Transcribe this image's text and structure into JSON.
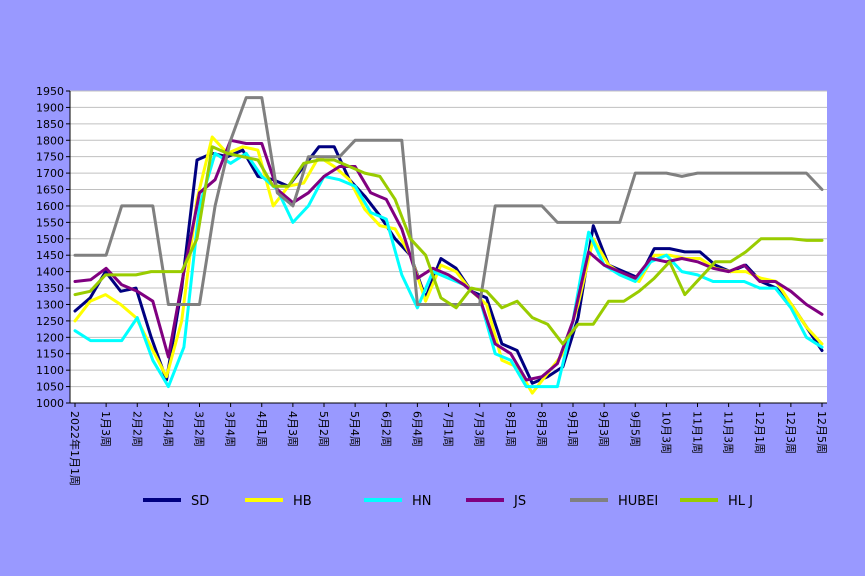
{
  "chart_data": {
    "type": "line",
    "title": "",
    "xlabel": "",
    "ylabel": "",
    "ylim": [
      1000,
      1950
    ],
    "y_ticks": [
      1000,
      1050,
      1100,
      1150,
      1200,
      1250,
      1300,
      1350,
      1400,
      1450,
      1500,
      1550,
      1600,
      1650,
      1700,
      1750,
      1800,
      1850,
      1900,
      1950
    ],
    "grid": true,
    "legend_position": "bottom",
    "x_tick_labels": [
      "2022年1月1周",
      "1月3周",
      "2月2周",
      "2月4周",
      "3月2周",
      "3月4周",
      "4月1周",
      "4月3周",
      "5月2周",
      "5月4周",
      "6月2周",
      "6月4周",
      "7月1周",
      "7月3周",
      "8月1周",
      "8月3周",
      "9月1周",
      "9月3周",
      "9月5周",
      "10月3周",
      "11月1周",
      "11月3周",
      "12月1周",
      "12月3周",
      "12月5周"
    ],
    "colors": {
      "background": "#9999ff",
      "plot_area": "#ffffff",
      "grid": "#c0c0c0"
    },
    "series": [
      {
        "name": "SD",
        "color": "#000080",
        "values": [
          1280,
          1320,
          1400,
          1340,
          1350,
          1200,
          1070,
          1350,
          1740,
          1760,
          1750,
          1770,
          1690,
          1680,
          1660,
          1720,
          1780,
          1780,
          1680,
          1630,
          1570,
          1500,
          1450,
          1320,
          1440,
          1410,
          1340,
          1320,
          1180,
          1160,
          1060,
          1080,
          1110,
          1260,
          1540,
          1420,
          1400,
          1380,
          1470,
          1470,
          1460,
          1460,
          1420,
          1400,
          1420,
          1370,
          1350,
          1300,
          1230,
          1160
        ]
      },
      {
        "name": "HB",
        "color": "#ffff00",
        "values": [
          1250,
          1310,
          1330,
          1300,
          1260,
          1170,
          1080,
          1250,
          1620,
          1810,
          1760,
          1780,
          1770,
          1600,
          1660,
          1670,
          1750,
          1720,
          1680,
          1590,
          1540,
          1530,
          1450,
          1310,
          1420,
          1400,
          1340,
          1300,
          1130,
          1110,
          1030,
          1090,
          1150,
          1300,
          1500,
          1420,
          1390,
          1370,
          1450,
          1450,
          1440,
          1440,
          1410,
          1400,
          1400,
          1380,
          1370,
          1300,
          1230,
          1180
        ]
      },
      {
        "name": "HN",
        "color": "#00ffff",
        "values": [
          1220,
          1190,
          1190,
          1190,
          1260,
          1130,
          1050,
          1170,
          1600,
          1760,
          1730,
          1760,
          1690,
          1650,
          1550,
          1600,
          1690,
          1680,
          1660,
          1580,
          1560,
          1390,
          1290,
          1400,
          1380,
          1360,
          1320,
          1150,
          1130,
          1050,
          1050,
          1050,
          1250,
          1520,
          1420,
          1390,
          1370,
          1430,
          1450,
          1400,
          1390,
          1370,
          1370,
          1370,
          1350,
          1350,
          1290,
          1200,
          1170
        ]
      },
      {
        "name": "JS",
        "color": "#800080",
        "values": [
          1370,
          1375,
          1410,
          1360,
          1340,
          1310,
          1140,
          1400,
          1640,
          1680,
          1800,
          1790,
          1790,
          1650,
          1610,
          1640,
          1690,
          1720,
          1720,
          1640,
          1620,
          1530,
          1380,
          1410,
          1390,
          1360,
          1320,
          1180,
          1150,
          1070,
          1080,
          1120,
          1250,
          1460,
          1420,
          1400,
          1380,
          1440,
          1430,
          1440,
          1430,
          1410,
          1400,
          1420,
          1370,
          1370,
          1340,
          1300,
          1270
        ]
      },
      {
        "name": "HUBEI",
        "color": "#808080",
        "values": [
          1450,
          1450,
          1450,
          1600,
          1600,
          1600,
          1300,
          1300,
          1300,
          1600,
          1800,
          1930,
          1930,
          1640,
          1600,
          1750,
          1750,
          1750,
          1800,
          1800,
          1800,
          1800,
          1300,
          1300,
          1300,
          1300,
          1300,
          1600,
          1600,
          1600,
          1600,
          1550,
          1550,
          1550,
          1550,
          1550,
          1700,
          1700,
          1700,
          1690,
          1700,
          1700,
          1700,
          1700,
          1700,
          1700,
          1700,
          1700,
          1650
        ]
      },
      {
        "name": "HL J",
        "color": "#99cc00",
        "values": [
          1330,
          1340,
          1390,
          1390,
          1390,
          1400,
          1400,
          1400,
          1500,
          1780,
          1760,
          1750,
          1740,
          1660,
          1660,
          1730,
          1740,
          1740,
          1720,
          1700,
          1690,
          1620,
          1500,
          1450,
          1320,
          1290,
          1350,
          1340,
          1290,
          1310,
          1260,
          1240,
          1180,
          1240,
          1240,
          1310,
          1310,
          1340,
          1380,
          1430,
          1330,
          1380,
          1430,
          1430,
          1460,
          1500,
          1500,
          1500,
          1495,
          1495
        ]
      }
    ]
  }
}
